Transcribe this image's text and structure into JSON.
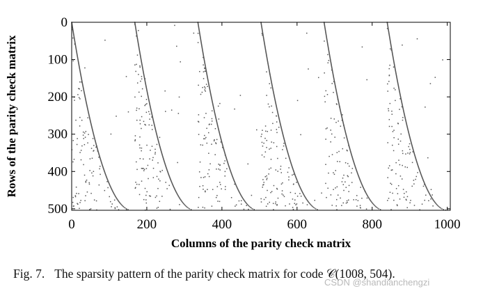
{
  "chart_data": {
    "type": "scatter",
    "xlabel": "Columns of the parity check matrix",
    "ylabel": "Rows of the parity check matrix",
    "xlim": [
      0,
      1008
    ],
    "ylim": [
      504,
      0
    ],
    "xticks": [
      0,
      200,
      400,
      600,
      800,
      1000
    ],
    "yticks": [
      0,
      100,
      200,
      300,
      400,
      500
    ],
    "grid": false,
    "pattern": {
      "blocks": 6,
      "columns_per_block": 168,
      "boundary_curve_end": {
        "column_offset": 160,
        "row": 504
      },
      "below_boundary_density": "random scattered nonzeros",
      "above_boundary": "no nonzeros except a few isolated points"
    },
    "marker_color": "#555555"
  },
  "caption": {
    "prefix": "Fig. 7.",
    "text": "The sparsity pattern of the parity check matrix for code 𝒞(1008, 504)."
  },
  "watermark": "CSDN @shandianchengzi"
}
